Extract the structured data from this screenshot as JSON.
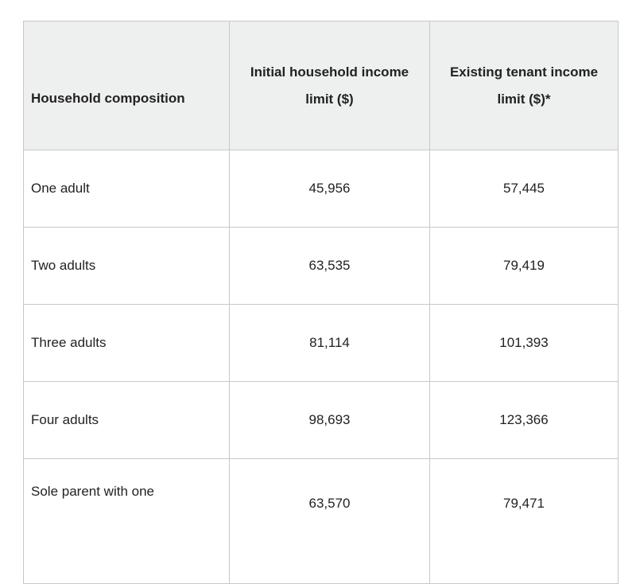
{
  "table": {
    "headers": [
      "Household composition",
      "Initial household income limit ($)",
      "Existing tenant income limit ($)*"
    ],
    "rows": [
      [
        "One adult",
        "45,956",
        "57,445"
      ],
      [
        "Two adults",
        "63,535",
        "79,419"
      ],
      [
        "Three adults",
        "81,114",
        "101,393"
      ],
      [
        "Four adults",
        "98,693",
        "123,366"
      ],
      [
        "Sole parent with one",
        "63,570",
        "79,471"
      ]
    ]
  }
}
